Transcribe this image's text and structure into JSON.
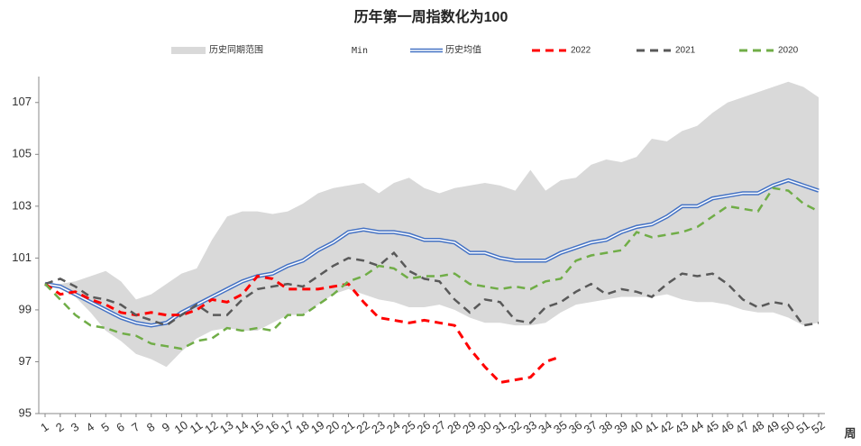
{
  "chart_data": {
    "type": "line",
    "title": "历年第一周指数化为100",
    "x_label": "周",
    "categories": [
      "1",
      "2",
      "3",
      "4",
      "5",
      "6",
      "7",
      "8",
      "9",
      "10",
      "11",
      "12",
      "13",
      "14",
      "15",
      "16",
      "17",
      "18",
      "19",
      "20",
      "21",
      "22",
      "23",
      "24",
      "25",
      "26",
      "27",
      "28",
      "29",
      "30",
      "31",
      "32",
      "33",
      "34",
      "35",
      "36",
      "37",
      "38",
      "39",
      "40",
      "41",
      "42",
      "43",
      "44",
      "45",
      "46",
      "47",
      "48",
      "49",
      "50",
      "51",
      "52"
    ],
    "range": {
      "name": "历史同期范围",
      "color": "#d9d9d9",
      "values": [
        100,
        100,
        100.1,
        100.3,
        100.5,
        100.1,
        99.4,
        99.6,
        100,
        100.4,
        100.6,
        101.7,
        102.6,
        102.8,
        102.8,
        102.7,
        102.8,
        103.1,
        103.5,
        103.7,
        103.8,
        103.9,
        103.5,
        103.9,
        104.1,
        103.7,
        103.5,
        103.7,
        103.8,
        103.9,
        103.8,
        103.6,
        104.4,
        103.6,
        104.0,
        104.1,
        104.6,
        104.8,
        104.7,
        104.9,
        105.6,
        105.5,
        105.9,
        106.1,
        106.6,
        107.0,
        107.2,
        107.4,
        107.6,
        107.8,
        107.6,
        107.2
      ]
    },
    "min": {
      "name": "Min",
      "values": [
        100,
        99.8,
        99.5,
        98.9,
        98.2,
        97.8,
        97.3,
        97.1,
        96.8,
        97.4,
        97.9,
        98.2,
        98.3,
        98.2,
        98.2,
        98.5,
        98.8,
        98.8,
        99.2,
        99.6,
        99.8,
        99.6,
        99.4,
        99.3,
        99.1,
        99.1,
        99.2,
        99.0,
        98.7,
        98.5,
        98.5,
        98.4,
        98.4,
        98.5,
        98.9,
        99.2,
        99.3,
        99.4,
        99.5,
        99.5,
        99.5,
        99.6,
        99.4,
        99.3,
        99.3,
        99.2,
        99.0,
        98.9,
        98.9,
        98.7,
        98.4,
        98.5
      ]
    },
    "series": [
      {
        "name": "历史均值",
        "color": "#4472c4",
        "double": true,
        "values": [
          100,
          99.9,
          99.6,
          99.3,
          99.0,
          98.7,
          98.5,
          98.4,
          98.5,
          98.9,
          99.2,
          99.5,
          99.8,
          100.1,
          100.3,
          100.4,
          100.7,
          100.9,
          101.3,
          101.6,
          102.0,
          102.1,
          102.0,
          102.0,
          101.9,
          101.7,
          101.7,
          101.6,
          101.2,
          101.2,
          101.0,
          100.9,
          100.9,
          100.9,
          101.2,
          101.4,
          101.6,
          101.7,
          102.0,
          102.2,
          102.3,
          102.6,
          103.0,
          103.0,
          103.3,
          103.4,
          103.5,
          103.5,
          103.8,
          104.0,
          103.8,
          103.6
        ]
      },
      {
        "name": "2022",
        "color": "#ff0000",
        "dashed": true,
        "values": [
          100,
          99.6,
          99.7,
          99.4,
          99.2,
          98.9,
          98.8,
          98.9,
          98.8,
          98.8,
          99.0,
          99.4,
          99.3,
          99.6,
          100.3,
          100.2,
          99.8,
          99.8,
          99.8,
          99.9,
          100.0,
          99.3,
          98.7,
          98.6,
          98.5,
          98.6,
          98.5,
          98.4,
          97.5,
          96.8,
          96.2,
          96.3,
          96.4,
          97.0,
          97.2,
          null,
          null,
          null,
          null,
          null,
          null,
          null,
          null,
          null,
          null,
          null,
          null,
          null,
          null,
          null,
          null,
          null
        ]
      },
      {
        "name": "2021",
        "color": "#595959",
        "dashed": true,
        "values": [
          100,
          100.2,
          99.9,
          99.5,
          99.4,
          99.2,
          98.8,
          98.6,
          98.4,
          98.8,
          99.2,
          98.8,
          98.8,
          99.4,
          99.8,
          99.9,
          100.0,
          99.9,
          100.3,
          100.7,
          101.0,
          100.9,
          100.7,
          101.2,
          100.5,
          100.2,
          100.1,
          99.4,
          98.9,
          99.4,
          99.3,
          98.6,
          98.5,
          99.1,
          99.3,
          99.7,
          100.0,
          99.6,
          99.8,
          99.7,
          99.5,
          100.0,
          100.4,
          100.3,
          100.4,
          100.0,
          99.4,
          99.1,
          99.3,
          99.2,
          98.4,
          98.5
        ]
      },
      {
        "name": "2020",
        "color": "#70ad47",
        "dashed": true,
        "values": [
          100,
          99.4,
          98.8,
          98.4,
          98.3,
          98.1,
          98.0,
          97.7,
          97.6,
          97.5,
          97.8,
          97.9,
          98.3,
          98.2,
          98.3,
          98.2,
          98.8,
          98.8,
          99.2,
          99.6,
          100.1,
          100.3,
          100.7,
          100.6,
          100.2,
          100.3,
          100.3,
          100.4,
          100.0,
          99.9,
          99.8,
          99.9,
          99.8,
          100.1,
          100.2,
          100.9,
          101.1,
          101.2,
          101.3,
          102.0,
          101.8,
          101.9,
          102.0,
          102.2,
          102.6,
          103.0,
          102.9,
          102.8,
          103.7,
          103.6,
          103.1,
          102.8
        ]
      }
    ],
    "ylim": [
      95,
      108
    ],
    "yticks": [
      95,
      97,
      99,
      101,
      103,
      105,
      107
    ],
    "grid": false,
    "legend": "top"
  }
}
